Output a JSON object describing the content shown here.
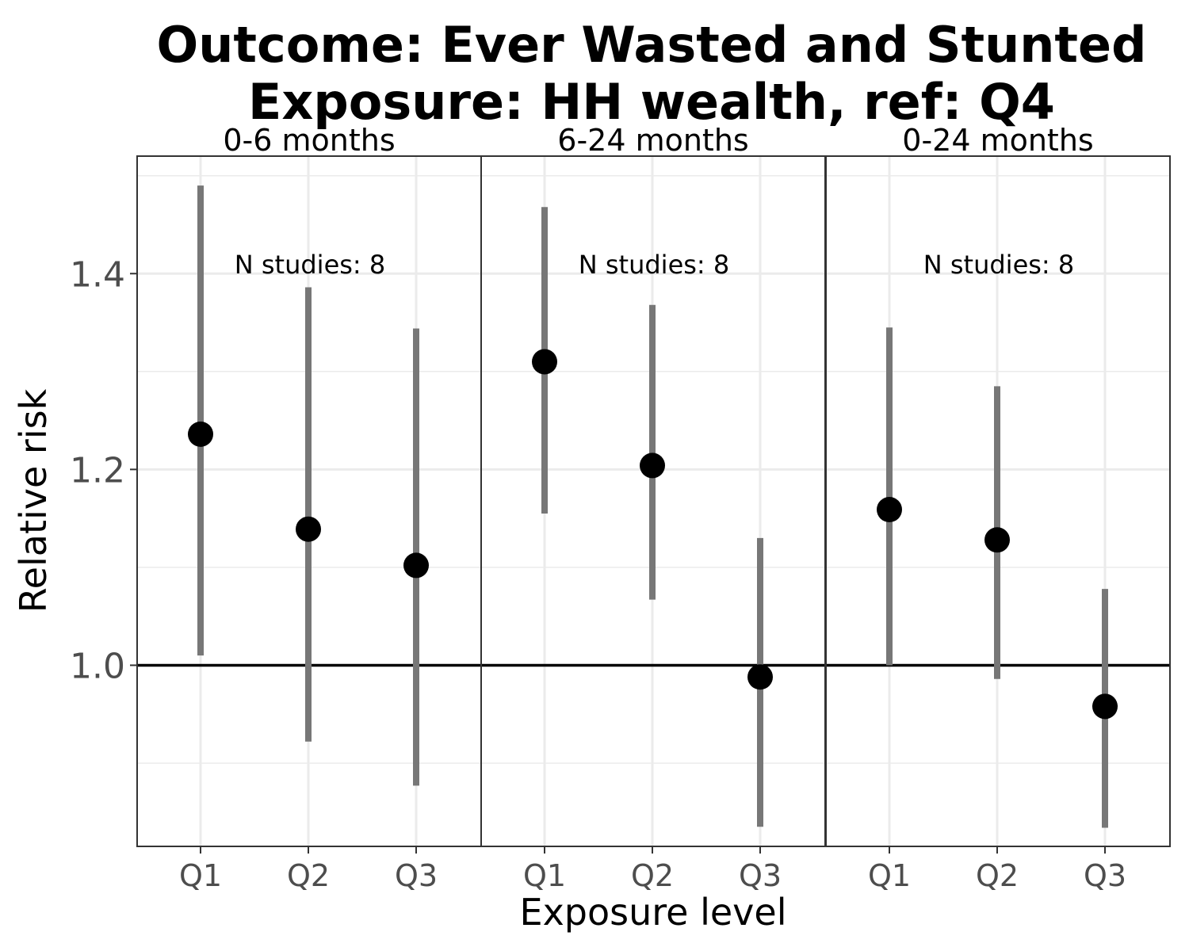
{
  "chart_data": {
    "type": "scatter",
    "title": "Outcome: Ever Wasted and Stunted\nExposure: HH wealth, ref: Q4",
    "xlabel": "Exposure level",
    "ylabel": "Relative risk",
    "categories": [
      "Q1",
      "Q2",
      "Q3"
    ],
    "y_ticks": [
      "1.0",
      "1.2",
      "1.4"
    ],
    "ylim": [
      0.815,
      1.52
    ],
    "reference_line": 1.0,
    "grid": true,
    "legend": "none",
    "colors": {
      "point": "#000000",
      "interval": "#777777",
      "grid": "#ebebeb",
      "border": "#333333"
    },
    "panels": [
      {
        "label": "0-6 months",
        "annotation": "N studies: 8",
        "points": [
          {
            "x": "Q1",
            "y": 1.236,
            "lower": 1.01,
            "upper": 1.49
          },
          {
            "x": "Q2",
            "y": 1.139,
            "lower": 0.922,
            "upper": 1.386
          },
          {
            "x": "Q3",
            "y": 1.102,
            "lower": 0.877,
            "upper": 1.344
          }
        ]
      },
      {
        "label": "6-24 months",
        "annotation": "N studies: 8",
        "points": [
          {
            "x": "Q1",
            "y": 1.31,
            "lower": 1.155,
            "upper": 1.468
          },
          {
            "x": "Q2",
            "y": 1.204,
            "lower": 1.067,
            "upper": 1.368
          },
          {
            "x": "Q3",
            "y": 0.988,
            "lower": 0.835,
            "upper": 1.13
          }
        ]
      },
      {
        "label": "0-24 months",
        "annotation": "N studies: 8",
        "points": [
          {
            "x": "Q1",
            "y": 1.159,
            "lower": 1.0,
            "upper": 1.345
          },
          {
            "x": "Q2",
            "y": 1.128,
            "lower": 0.986,
            "upper": 1.285
          },
          {
            "x": "Q3",
            "y": 0.958,
            "lower": 0.834,
            "upper": 1.078
          }
        ]
      }
    ]
  }
}
